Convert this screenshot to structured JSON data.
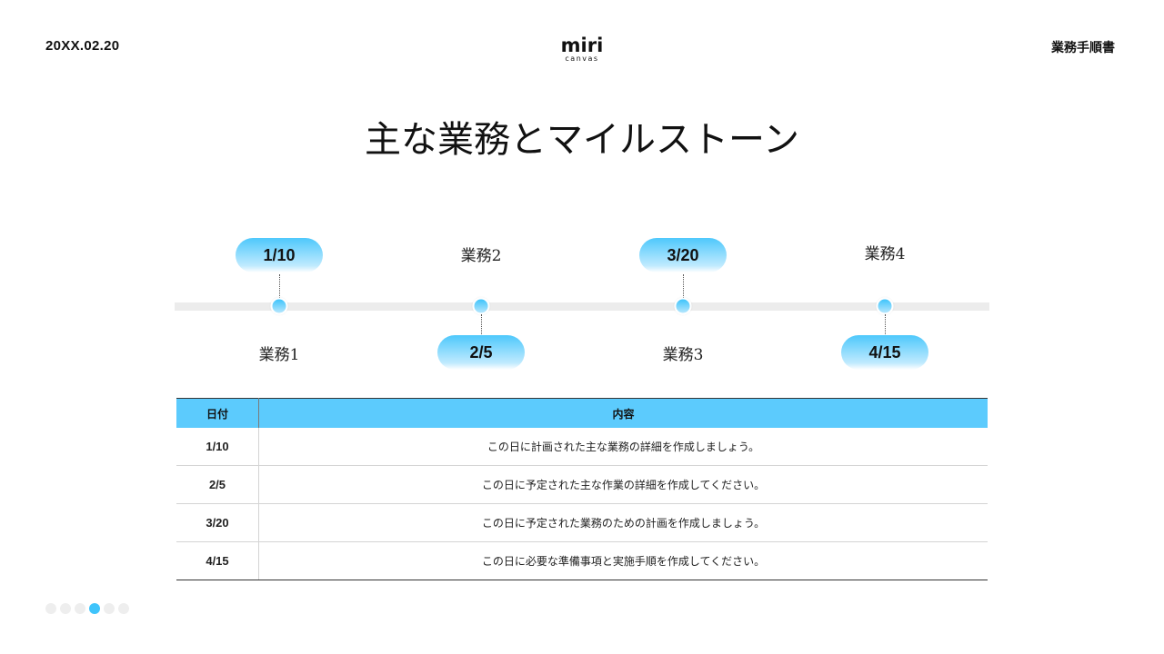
{
  "header": {
    "date": "20XX.02.20",
    "logo_main": "miri",
    "logo_sub": "canvas",
    "doc_title": "業務手順書"
  },
  "title": "主な業務とマイルストーン",
  "timeline": {
    "milestones": [
      {
        "date": "1/10",
        "task": "業務1"
      },
      {
        "date": "2/5",
        "task": "業務2"
      },
      {
        "date": "3/20",
        "task": "業務3"
      },
      {
        "date": "4/15",
        "task": "業務4"
      }
    ]
  },
  "table": {
    "headers": [
      "日付",
      "内容"
    ],
    "rows": [
      {
        "date": "1/10",
        "content": "この日に計画された主な業務の詳細を作成しましょう。"
      },
      {
        "date": "2/5",
        "content": "この日に予定された主な作業の詳細を作成してください。"
      },
      {
        "date": "3/20",
        "content": "この日に予定された業務のための計画を作成しましょう。"
      },
      {
        "date": "4/15",
        "content": "この日に必要な準備事項と実施手順を作成してください。"
      }
    ]
  },
  "pager": {
    "total": 6,
    "active_index": 3
  },
  "colors": {
    "accent": "#5ccbfd",
    "track": "#ececec"
  }
}
